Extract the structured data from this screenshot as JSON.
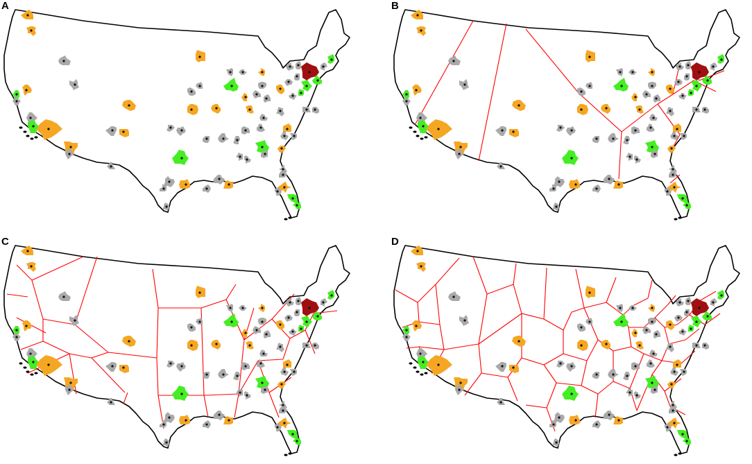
{
  "panels": [
    {
      "id": "A",
      "label": "A",
      "partition_cells": 0
    },
    {
      "id": "B",
      "label": "B",
      "partition_cells": 12
    },
    {
      "id": "C",
      "label": "C",
      "partition_cells": 34
    },
    {
      "id": "D",
      "label": "D",
      "partition_cells": 60
    }
  ],
  "colors": {
    "outline": "#000000",
    "partition_lines": "#ff0000",
    "category_gray": "#a9a9a9",
    "category_orange": "#f5a623",
    "category_green": "#44ee22",
    "category_darkred": "#a01010",
    "center_dot": "#111111"
  }
}
